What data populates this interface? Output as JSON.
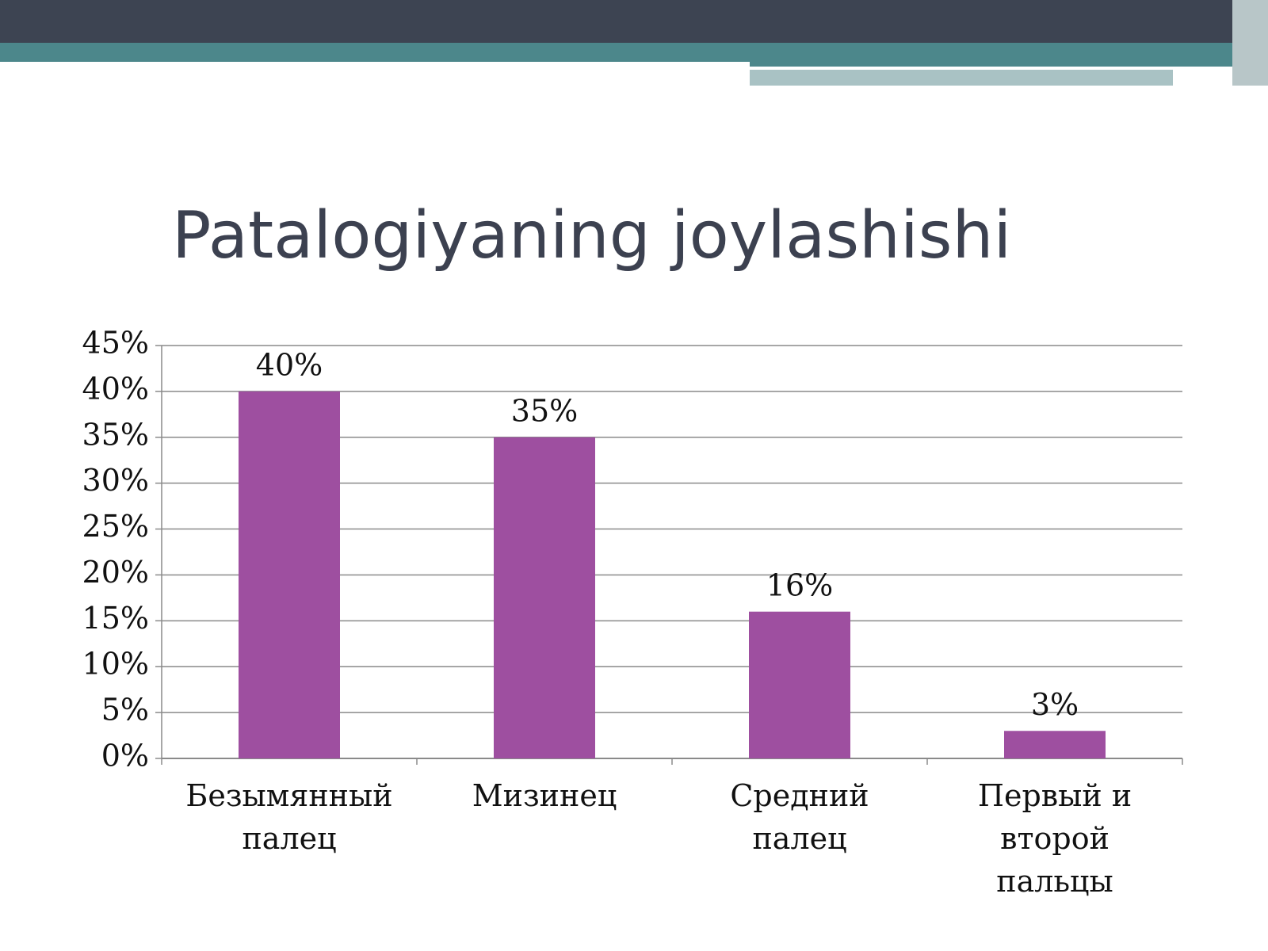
{
  "chart_data": {
    "type": "bar",
    "title": "Patalogiyaning joylashishi",
    "categories": [
      "Безымянный\nпалец",
      "Мизинец",
      "Средний\nпалец",
      "Первый и\nвторой\nпальцы"
    ],
    "values": [
      40,
      35,
      16,
      3
    ],
    "value_labels": [
      "40%",
      "35%",
      "16%",
      "3%"
    ],
    "color": "#9e4fa0",
    "ylim": [
      0,
      45
    ],
    "yticks": [
      {
        "value": 0,
        "label": "0%"
      },
      {
        "value": 5,
        "label": "5%"
      },
      {
        "value": 10,
        "label": "10%"
      },
      {
        "value": 15,
        "label": "15%"
      },
      {
        "value": 20,
        "label": "20%"
      },
      {
        "value": 25,
        "label": "25%"
      },
      {
        "value": 30,
        "label": "30%"
      },
      {
        "value": 35,
        "label": "35%"
      },
      {
        "value": 40,
        "label": "40%"
      },
      {
        "value": 45,
        "label": "45%"
      }
    ],
    "grid": true
  }
}
